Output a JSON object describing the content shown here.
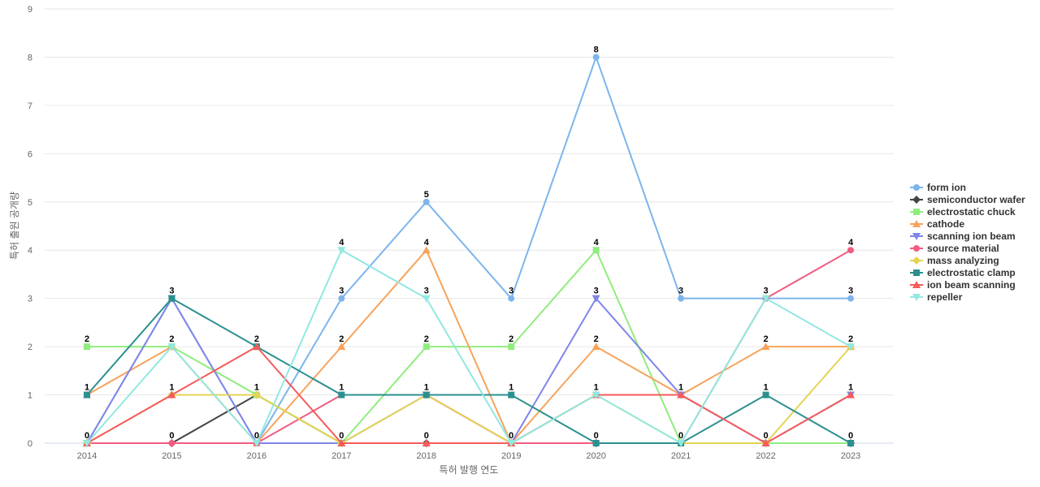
{
  "chart_data": {
    "type": "line",
    "title": "",
    "xlabel": "특허 발행 연도",
    "ylabel": "특허 출원 공개량",
    "ylim": [
      0,
      9
    ],
    "yticks": [
      0,
      1,
      2,
      3,
      4,
      5,
      6,
      7,
      8,
      9
    ],
    "grid": true,
    "legend_position": "right",
    "x": [
      "2014",
      "2015",
      "2016",
      "2017",
      "2018",
      "2019",
      "2020",
      "2021",
      "2022",
      "2023"
    ],
    "series": [
      {
        "name": "form ion",
        "color": "#7cb5ec",
        "marker": "circle",
        "values": [
          0,
          3,
          0,
          3,
          5,
          3,
          8,
          3,
          3,
          3
        ]
      },
      {
        "name": "semiconductor wafer",
        "color": "#434348",
        "marker": "diamond",
        "values": [
          0,
          0,
          1,
          0,
          0,
          0,
          0,
          0,
          0,
          0
        ]
      },
      {
        "name": "electrostatic chuck",
        "color": "#90ed7d",
        "marker": "square",
        "values": [
          2,
          2,
          1,
          0,
          2,
          2,
          4,
          0,
          0,
          0
        ]
      },
      {
        "name": "cathode",
        "color": "#f7a35c",
        "marker": "triangle",
        "values": [
          1,
          2,
          0,
          2,
          4,
          0,
          2,
          1,
          2,
          2
        ]
      },
      {
        "name": "scanning ion beam",
        "color": "#8085e9",
        "marker": "triangle-down",
        "values": [
          0,
          3,
          0,
          0,
          1,
          0,
          3,
          1,
          0,
          1
        ]
      },
      {
        "name": "source material",
        "color": "#f15c80",
        "marker": "circle",
        "values": [
          0,
          0,
          0,
          1,
          1,
          0,
          0,
          0,
          3,
          4
        ]
      },
      {
        "name": "mass analyzing",
        "color": "#e4d354",
        "marker": "diamond",
        "values": [
          0,
          1,
          1,
          0,
          1,
          0,
          1,
          0,
          0,
          2
        ]
      },
      {
        "name": "electrostatic clamp",
        "color": "#2b908f",
        "marker": "square",
        "values": [
          1,
          3,
          2,
          1,
          1,
          1,
          0,
          0,
          1,
          0
        ]
      },
      {
        "name": "ion beam scanning",
        "color": "#f45b5b",
        "marker": "triangle",
        "values": [
          0,
          1,
          2,
          0,
          0,
          0,
          1,
          1,
          0,
          1
        ]
      },
      {
        "name": "repeller",
        "color": "#91e8e1",
        "marker": "triangle-down",
        "values": [
          0,
          2,
          0,
          4,
          3,
          0,
          1,
          0,
          3,
          2
        ]
      }
    ],
    "data_labels": [
      {
        "x": "2014",
        "values": [
          "2",
          "1",
          "0"
        ]
      },
      {
        "x": "2015",
        "values": [
          "3",
          "2",
          "1",
          "0"
        ]
      },
      {
        "x": "2016",
        "values": [
          "2",
          "1",
          "0"
        ]
      },
      {
        "x": "2017",
        "values": [
          "4",
          "3",
          "2",
          "1",
          "0"
        ]
      },
      {
        "x": "2018",
        "values": [
          "5",
          "4",
          "3",
          "2",
          "1",
          "0"
        ]
      },
      {
        "x": "2019",
        "values": [
          "3",
          "2",
          "1",
          "0"
        ]
      },
      {
        "x": "2020",
        "values": [
          "8",
          "4",
          "3",
          "2",
          "1",
          "0"
        ]
      },
      {
        "x": "2021",
        "values": [
          "3",
          "1",
          "0"
        ]
      },
      {
        "x": "2022",
        "values": [
          "3",
          "2",
          "1",
          "0"
        ]
      },
      {
        "x": "2023",
        "values": [
          "4",
          "3",
          "2",
          "1",
          "0"
        ]
      }
    ]
  }
}
